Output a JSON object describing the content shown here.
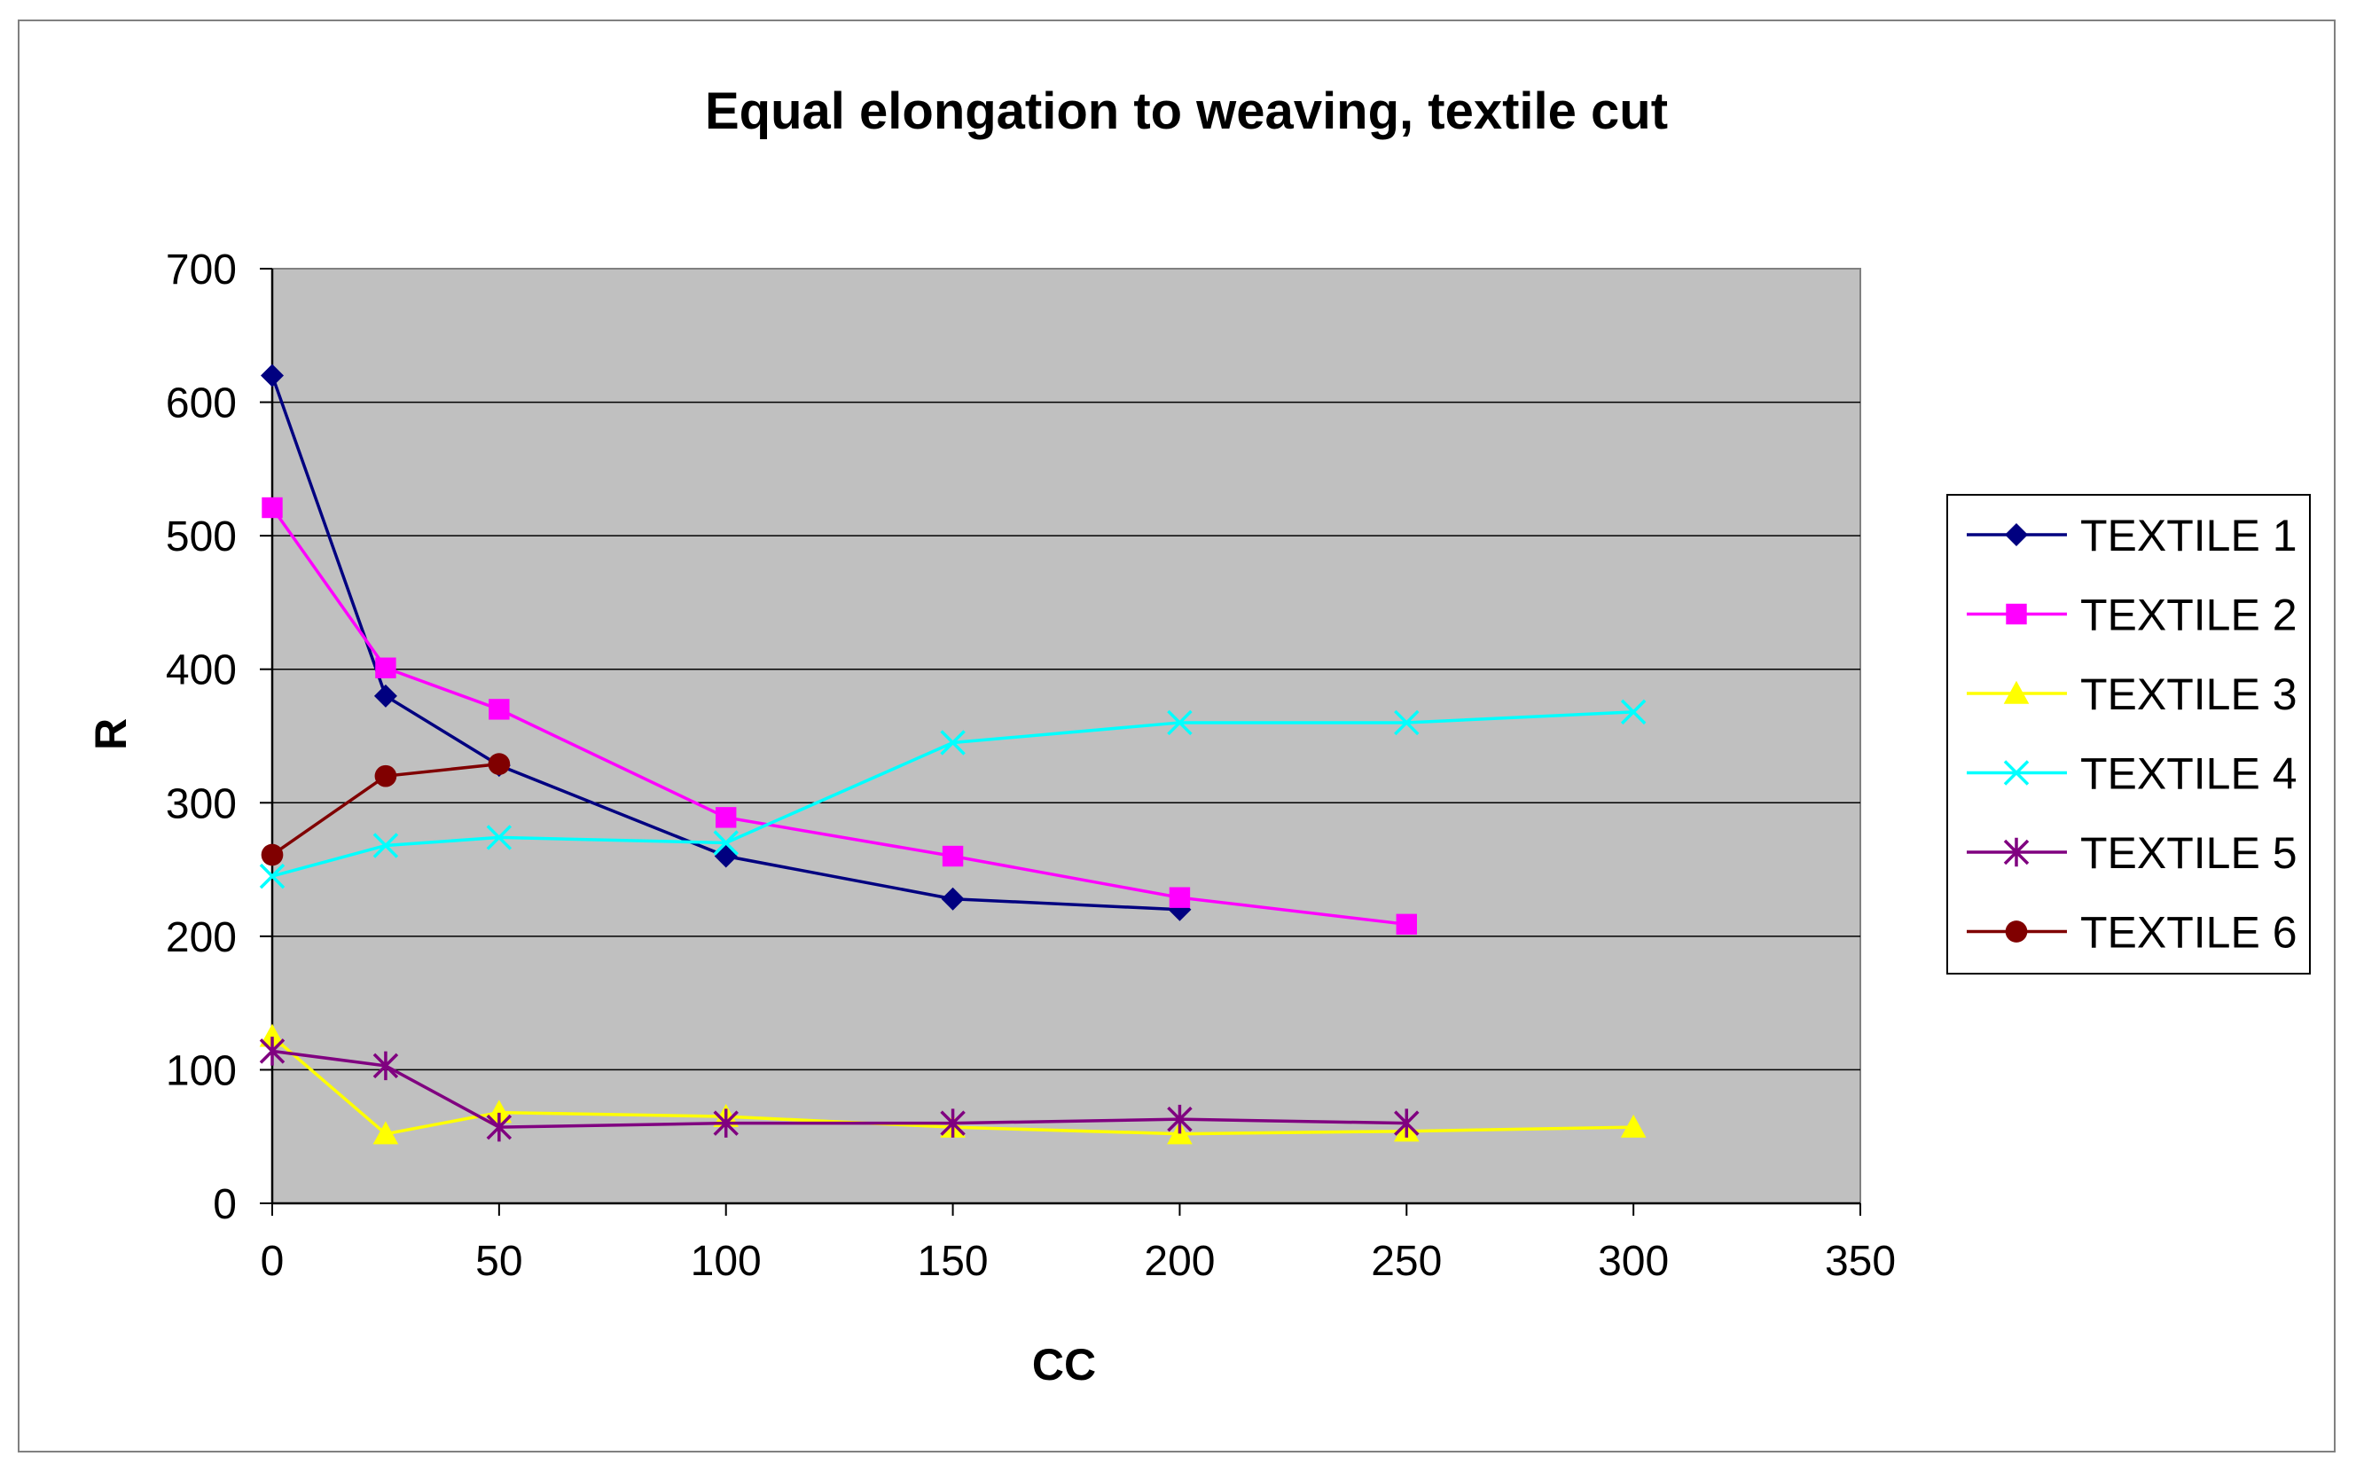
{
  "chart_data": {
    "type": "line",
    "title": "Equal elongation to weaving, textile cut",
    "xlabel": "CC",
    "ylabel": "R",
    "xlim": [
      0,
      350
    ],
    "ylim": [
      0,
      700
    ],
    "x_ticks": [
      "0",
      "50",
      "100",
      "150",
      "200",
      "250",
      "300",
      "350"
    ],
    "y_ticks": [
      "0",
      "100",
      "200",
      "300",
      "400",
      "500",
      "600",
      "700"
    ],
    "grid": "horizontal",
    "plot_background": "#c0c0c0",
    "legend_position": "right",
    "series": [
      {
        "name": "TEXTILE 1",
        "color": "#000080",
        "marker": "diamond",
        "points": [
          [
            0,
            620
          ],
          [
            25,
            380
          ],
          [
            50,
            328
          ],
          [
            100,
            260
          ],
          [
            150,
            228
          ],
          [
            200,
            220
          ]
        ]
      },
      {
        "name": "TEXTILE 2",
        "color": "#ff00ff",
        "marker": "square",
        "points": [
          [
            0,
            521
          ],
          [
            25,
            401
          ],
          [
            50,
            370
          ],
          [
            100,
            289
          ],
          [
            150,
            260
          ],
          [
            200,
            229
          ],
          [
            250,
            209
          ]
        ]
      },
      {
        "name": "TEXTILE 3",
        "color": "#ffff00",
        "marker": "triangle",
        "points": [
          [
            0,
            125
          ],
          [
            25,
            52
          ],
          [
            50,
            68
          ],
          [
            100,
            65
          ],
          [
            150,
            57
          ],
          [
            200,
            52
          ],
          [
            250,
            54
          ],
          [
            300,
            57
          ]
        ]
      },
      {
        "name": "TEXTILE 4",
        "color": "#00ffff",
        "marker": "x",
        "points": [
          [
            0,
            245
          ],
          [
            25,
            268
          ],
          [
            50,
            274
          ],
          [
            100,
            270
          ],
          [
            150,
            345
          ],
          [
            200,
            360
          ],
          [
            250,
            360
          ],
          [
            300,
            368
          ]
        ]
      },
      {
        "name": "TEXTILE 5",
        "color": "#800080",
        "marker": "star",
        "points": [
          [
            0,
            114
          ],
          [
            25,
            103
          ],
          [
            50,
            57
          ],
          [
            100,
            60
          ],
          [
            150,
            60
          ],
          [
            200,
            63
          ],
          [
            250,
            60
          ]
        ]
      },
      {
        "name": "TEXTILE 6",
        "color": "#800000",
        "marker": "circle",
        "points": [
          [
            0,
            261
          ],
          [
            25,
            320
          ],
          [
            50,
            329
          ]
        ]
      }
    ]
  }
}
